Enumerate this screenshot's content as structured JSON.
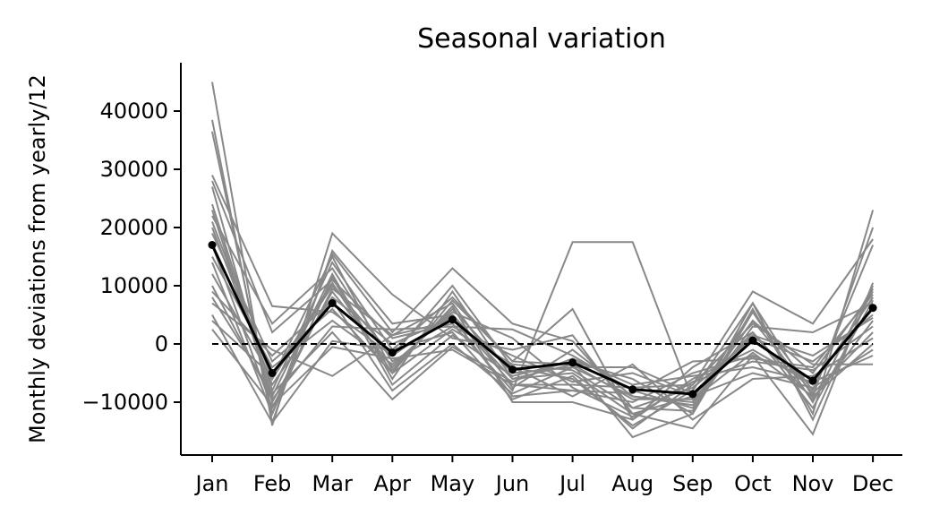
{
  "chart_data": {
    "type": "line",
    "title": "Seasonal variation",
    "xlabel": "",
    "ylabel": "Monthly deviations from yearly/12",
    "categories": [
      "Jan",
      "Feb",
      "Mar",
      "Apr",
      "May",
      "Jun",
      "Jul",
      "Aug",
      "Sep",
      "Oct",
      "Nov",
      "Dec"
    ],
    "ylim": [
      -19000,
      48500
    ],
    "yticks": [
      -10000,
      0,
      10000,
      20000,
      30000,
      40000
    ],
    "ytick_labels": [
      "−10000",
      "0",
      "10000",
      "20000",
      "30000",
      "40000"
    ],
    "grid": false,
    "legend": "none",
    "colors": {
      "individual": "#888888",
      "mean": "#000000",
      "baseline": "#000000"
    },
    "baseline": 0,
    "mean_series": [
      17000,
      -5000,
      7000,
      -1500,
      4200,
      -4400,
      -3200,
      -7800,
      -8600,
      600,
      -6300,
      6200
    ],
    "individual_series": [
      [
        45000,
        -14000,
        19000,
        8500,
        1000,
        -1000,
        1500,
        -12000,
        -14500,
        -2000,
        -15500,
        10500
      ],
      [
        38500,
        -13500,
        16000,
        3500,
        5000,
        -6000,
        -3500,
        -16000,
        -12000,
        6000,
        -12000,
        23000
      ],
      [
        36500,
        -12000,
        15500,
        2000,
        13000,
        3500,
        500,
        -11000,
        -11500,
        7000,
        -9000,
        20000
      ],
      [
        29000,
        6500,
        5500,
        -2000,
        5000,
        -7000,
        -7000,
        -7500,
        -7000,
        9000,
        3500,
        18000
      ],
      [
        28000,
        2000,
        11000,
        1000,
        3500,
        -8000,
        17500,
        17500,
        -9500,
        5500,
        -8000,
        17000
      ],
      [
        27000,
        -10000,
        9000,
        -4000,
        6000,
        -5000,
        -4000,
        -9000,
        -10000,
        4000,
        -5000,
        9000
      ],
      [
        24000,
        -8000,
        14000,
        -1000,
        8000,
        -3000,
        6000,
        -13000,
        -6000,
        -1000,
        -7000,
        8000
      ],
      [
        23000,
        -9000,
        12000,
        -6000,
        9000,
        -6000,
        -5000,
        -12000,
        -9000,
        2000,
        -9500,
        4000
      ],
      [
        22000,
        3500,
        13000,
        -3000,
        3000,
        2500,
        -2000,
        -8000,
        -11000,
        3000,
        2000,
        7000
      ],
      [
        21000,
        -6000,
        10000,
        -2000,
        10000,
        -4000,
        -6000,
        -14000,
        -8000,
        7000,
        -13000,
        9500
      ],
      [
        20000,
        -7000,
        8000,
        0,
        4500,
        -9000,
        -8000,
        -10000,
        -5000,
        -2000,
        -6000,
        6000
      ],
      [
        19000,
        -3000,
        6000,
        -5000,
        2500,
        -3500,
        -4500,
        -11000,
        -7500,
        1000,
        -3000,
        5000
      ],
      [
        17000,
        -11000,
        9500,
        1500,
        7000,
        -7500,
        -1000,
        -9000,
        -10500,
        4000,
        -8500,
        2000
      ],
      [
        15000,
        -4000,
        4000,
        -3500,
        5500,
        1000,
        -7500,
        -12500,
        -6500,
        -3000,
        -4500,
        3000
      ],
      [
        14000,
        -12000,
        11500,
        -7000,
        1500,
        -5500,
        -3000,
        -6000,
        -12000,
        5500,
        -10000,
        10000
      ],
      [
        12000,
        -6000,
        15000,
        -4500,
        6500,
        -10000,
        -10000,
        -13000,
        -4000,
        2000,
        -11000,
        7500
      ],
      [
        10000,
        -9500,
        3000,
        2500,
        3000,
        -2000,
        -6500,
        -5000,
        -9000,
        -5000,
        -7500,
        -1000
      ],
      [
        9000,
        -2000,
        7500,
        -8000,
        0,
        -8500,
        -4000,
        -4000,
        -8500,
        1500,
        -2000,
        4500
      ],
      [
        8000,
        -8500,
        2000,
        -9500,
        -500,
        -6500,
        -2500,
        -7000,
        -5500,
        -4000,
        -6500,
        -2000
      ],
      [
        7000,
        -1000,
        -5500,
        1500,
        4000,
        -4000,
        -9000,
        -3500,
        -13000,
        -6000,
        -5500,
        1000
      ],
      [
        5000,
        -13500,
        500,
        -1000,
        2000,
        -9500,
        -5500,
        -14500,
        -7000,
        3500,
        -3500,
        -3500
      ],
      [
        4000,
        -5500,
        10500,
        -5000,
        7500,
        -3000,
        -3500,
        -9500,
        -9500,
        -1500,
        -9000,
        0
      ],
      [
        2500,
        -10500,
        -500,
        -2500,
        -1000,
        -7000,
        -8000,
        -8500,
        -3000,
        -2500,
        -4000,
        8500
      ]
    ]
  }
}
